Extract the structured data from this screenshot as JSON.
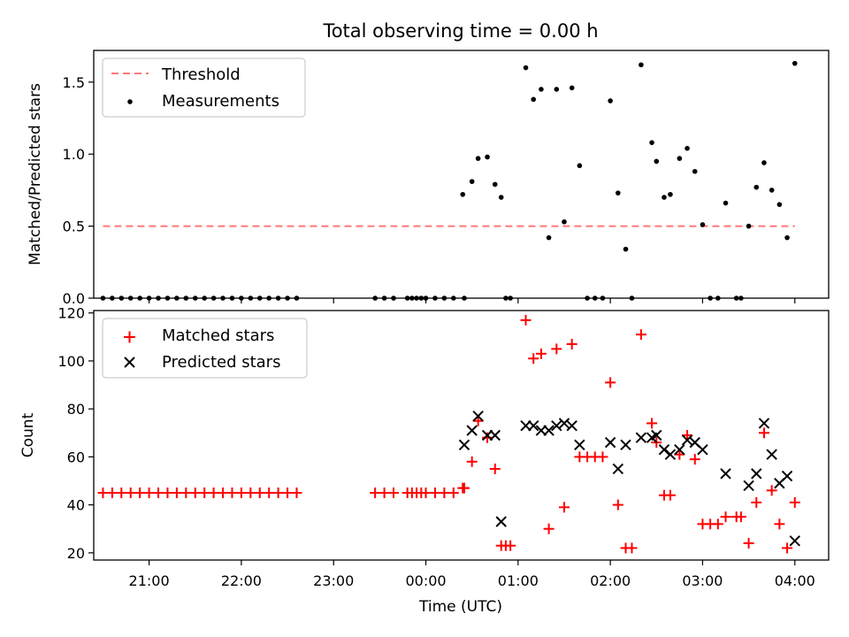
{
  "chart_data": [
    {
      "type": "scatter",
      "title": "Total observing time = 0.00 h",
      "ylabel": "Matched/Predicted stars",
      "xlabel": "",
      "xlim": [
        "20:24",
        "04:22"
      ],
      "ylim": [
        0,
        1.72
      ],
      "yticks": [
        "0.0",
        "0.5",
        "1.0",
        "1.5"
      ],
      "legend_position": "upper-left",
      "series": [
        {
          "name": "Threshold",
          "style": "dashed line",
          "color": "#ff7777",
          "x": [
            "20:30",
            "04:00"
          ],
          "y": [
            0.5,
            0.5
          ]
        },
        {
          "name": "Measurements",
          "style": "dots",
          "color": "#000000",
          "x": [
            "20:30",
            "20:36",
            "20:42",
            "20:48",
            "20:54",
            "21:00",
            "21:06",
            "21:12",
            "21:18",
            "21:24",
            "21:30",
            "21:36",
            "21:42",
            "21:48",
            "21:54",
            "22:00",
            "22:06",
            "22:12",
            "22:18",
            "22:24",
            "22:30",
            "22:36",
            "23:27",
            "23:33",
            "23:39",
            "23:48",
            "23:51",
            "23:54",
            "23:57",
            "00:00",
            "00:06",
            "00:12",
            "00:18",
            "00:24",
            "00:25",
            "00:30",
            "00:34",
            "00:40",
            "00:45",
            "00:49",
            "00:52",
            "00:55",
            "01:05",
            "01:10",
            "01:15",
            "01:20",
            "01:25",
            "01:30",
            "01:35",
            "01:40",
            "01:45",
            "01:50",
            "01:55",
            "02:00",
            "02:05",
            "02:10",
            "02:14",
            "02:20",
            "02:27",
            "02:30",
            "02:35",
            "02:39",
            "02:45",
            "02:50",
            "02:55",
            "03:00",
            "03:05",
            "03:10",
            "03:15",
            "03:22",
            "03:25",
            "03:30",
            "03:35",
            "03:40",
            "03:45",
            "03:50",
            "03:55",
            "04:00"
          ],
          "y": [
            0,
            0,
            0,
            0,
            0,
            0,
            0,
            0,
            0,
            0,
            0,
            0,
            0,
            0,
            0,
            0,
            0,
            0,
            0,
            0,
            0,
            0,
            0,
            0,
            0,
            0,
            0,
            0,
            0,
            0,
            0,
            0,
            0,
            0.72,
            0,
            0.81,
            0.97,
            0.98,
            0.79,
            0.7,
            0,
            0,
            1.6,
            1.38,
            1.45,
            0.42,
            1.45,
            0.53,
            1.46,
            0.92,
            0,
            0,
            0,
            1.37,
            0.73,
            0.34,
            0,
            1.62,
            1.08,
            0.95,
            0.7,
            0.72,
            0.97,
            1.04,
            0.88,
            0.51,
            0,
            0,
            0.66,
            0,
            0,
            0.5,
            0.77,
            0.94,
            0.75,
            0.65,
            0.42,
            1.63
          ]
        }
      ]
    },
    {
      "type": "scatter",
      "title": "",
      "ylabel": "Count",
      "xlabel": "Time (UTC)",
      "xlim": [
        "20:24",
        "04:22"
      ],
      "ylim": [
        17,
        121
      ],
      "yticks": [
        "20",
        "40",
        "60",
        "80",
        "100",
        "120"
      ],
      "xticks": [
        "21:00",
        "22:00",
        "23:00",
        "00:00",
        "01:00",
        "02:00",
        "03:00",
        "04:00"
      ],
      "legend_position": "upper-left",
      "series": [
        {
          "name": "Matched stars",
          "marker": "+",
          "color": "#ff0000",
          "x": [
            "20:30",
            "20:36",
            "20:42",
            "20:48",
            "20:54",
            "21:00",
            "21:06",
            "21:12",
            "21:18",
            "21:24",
            "21:30",
            "21:36",
            "21:42",
            "21:48",
            "21:54",
            "22:00",
            "22:06",
            "22:12",
            "22:18",
            "22:24",
            "22:30",
            "22:36",
            "23:27",
            "23:33",
            "23:39",
            "23:48",
            "23:51",
            "23:54",
            "23:57",
            "00:00",
            "00:06",
            "00:12",
            "00:18",
            "00:24",
            "00:25",
            "00:30",
            "00:34",
            "00:40",
            "00:45",
            "00:49",
            "00:52",
            "00:55",
            "01:05",
            "01:10",
            "01:15",
            "01:20",
            "01:25",
            "01:30",
            "01:35",
            "01:40",
            "01:45",
            "01:50",
            "01:55",
            "02:00",
            "02:05",
            "02:10",
            "02:14",
            "02:20",
            "02:27",
            "02:30",
            "02:35",
            "02:39",
            "02:45",
            "02:50",
            "02:55",
            "03:00",
            "03:05",
            "03:10",
            "03:15",
            "03:22",
            "03:25",
            "03:30",
            "03:35",
            "03:40",
            "03:45",
            "03:50",
            "03:55",
            "04:00"
          ],
          "y": [
            45,
            45,
            45,
            45,
            45,
            45,
            45,
            45,
            45,
            45,
            45,
            45,
            45,
            45,
            45,
            45,
            45,
            45,
            45,
            45,
            45,
            45,
            45,
            45,
            45,
            45,
            45,
            45,
            45,
            45,
            45,
            45,
            45,
            47,
            47,
            58,
            75,
            68,
            55,
            23,
            23,
            23,
            117,
            101,
            103,
            30,
            105,
            39,
            107,
            60,
            60,
            60,
            60,
            91,
            40,
            22,
            22,
            111,
            74,
            66,
            44,
            44,
            61,
            69,
            59,
            32,
            32,
            32,
            35,
            35,
            35,
            24,
            41,
            70,
            46,
            32,
            22,
            41
          ]
        },
        {
          "name": "Predicted stars",
          "marker": "x",
          "color": "#000000",
          "x": [
            "00:25",
            "00:30",
            "00:34",
            "00:40",
            "00:45",
            "00:49",
            "01:05",
            "01:10",
            "01:15",
            "01:20",
            "01:25",
            "01:30",
            "01:35",
            "01:40",
            "02:00",
            "02:05",
            "02:10",
            "02:20",
            "02:27",
            "02:30",
            "02:35",
            "02:39",
            "02:45",
            "02:50",
            "02:55",
            "03:00",
            "03:15",
            "03:30",
            "03:35",
            "03:40",
            "03:45",
            "03:50",
            "03:55",
            "04:00"
          ],
          "y": [
            65,
            71,
            77,
            69,
            69,
            33,
            73,
            73,
            71,
            71,
            73,
            74,
            73,
            65,
            66,
            55,
            65,
            68,
            68,
            69,
            63,
            61,
            63,
            67,
            66,
            63,
            53,
            48,
            53,
            74,
            61,
            49,
            52,
            25
          ]
        }
      ]
    }
  ]
}
